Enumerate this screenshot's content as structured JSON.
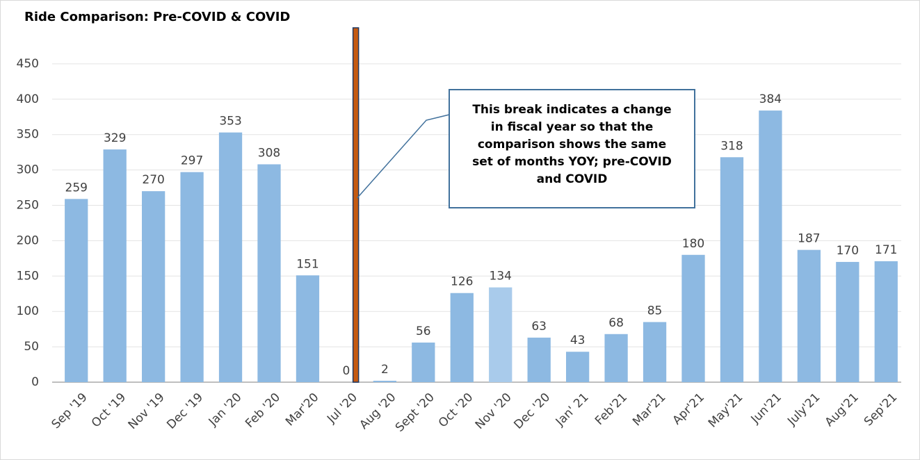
{
  "chart_data": {
    "type": "bar",
    "title": "Ride Comparison: Pre-COVID & COVID",
    "categories": [
      "Sep '19",
      "Oct '19",
      "Nov '19",
      "Dec '19",
      "Jan '20",
      "Feb '20",
      "Mar'20",
      "Jul '20",
      "Aug '20",
      "Sept '20",
      "Oct '20",
      "Nov '20",
      "Dec '20",
      "Jan' 21",
      "Feb'21",
      "Mar'21",
      "Apr'21",
      "May'21",
      "Jun'21",
      "July'21",
      "Aug'21",
      "Sep'21"
    ],
    "values": [
      259,
      329,
      270,
      297,
      353,
      308,
      151,
      0,
      2,
      56,
      126,
      134,
      63,
      43,
      68,
      85,
      180,
      318,
      384,
      187,
      170,
      171
    ],
    "colors": [
      "#8db9e2",
      "#8db9e2",
      "#8db9e2",
      "#8db9e2",
      "#8db9e2",
      "#8db9e2",
      "#8db9e2",
      "#8db9e2",
      "#8db9e2",
      "#8db9e2",
      "#8db9e2",
      "#a9cbeb",
      "#8db9e2",
      "#8db9e2",
      "#8db9e2",
      "#8db9e2",
      "#8db9e2",
      "#8db9e2",
      "#8db9e2",
      "#8db9e2",
      "#8db9e2",
      "#8db9e2"
    ],
    "ylim": [
      0,
      500
    ],
    "yticks": [
      0,
      50,
      100,
      150,
      200,
      250,
      300,
      350,
      400,
      450
    ],
    "grid": true,
    "annotation": "This break indicates a change in fiscal year so that the comparison shows the same set of months YOY; pre-COVID and COVID"
  }
}
